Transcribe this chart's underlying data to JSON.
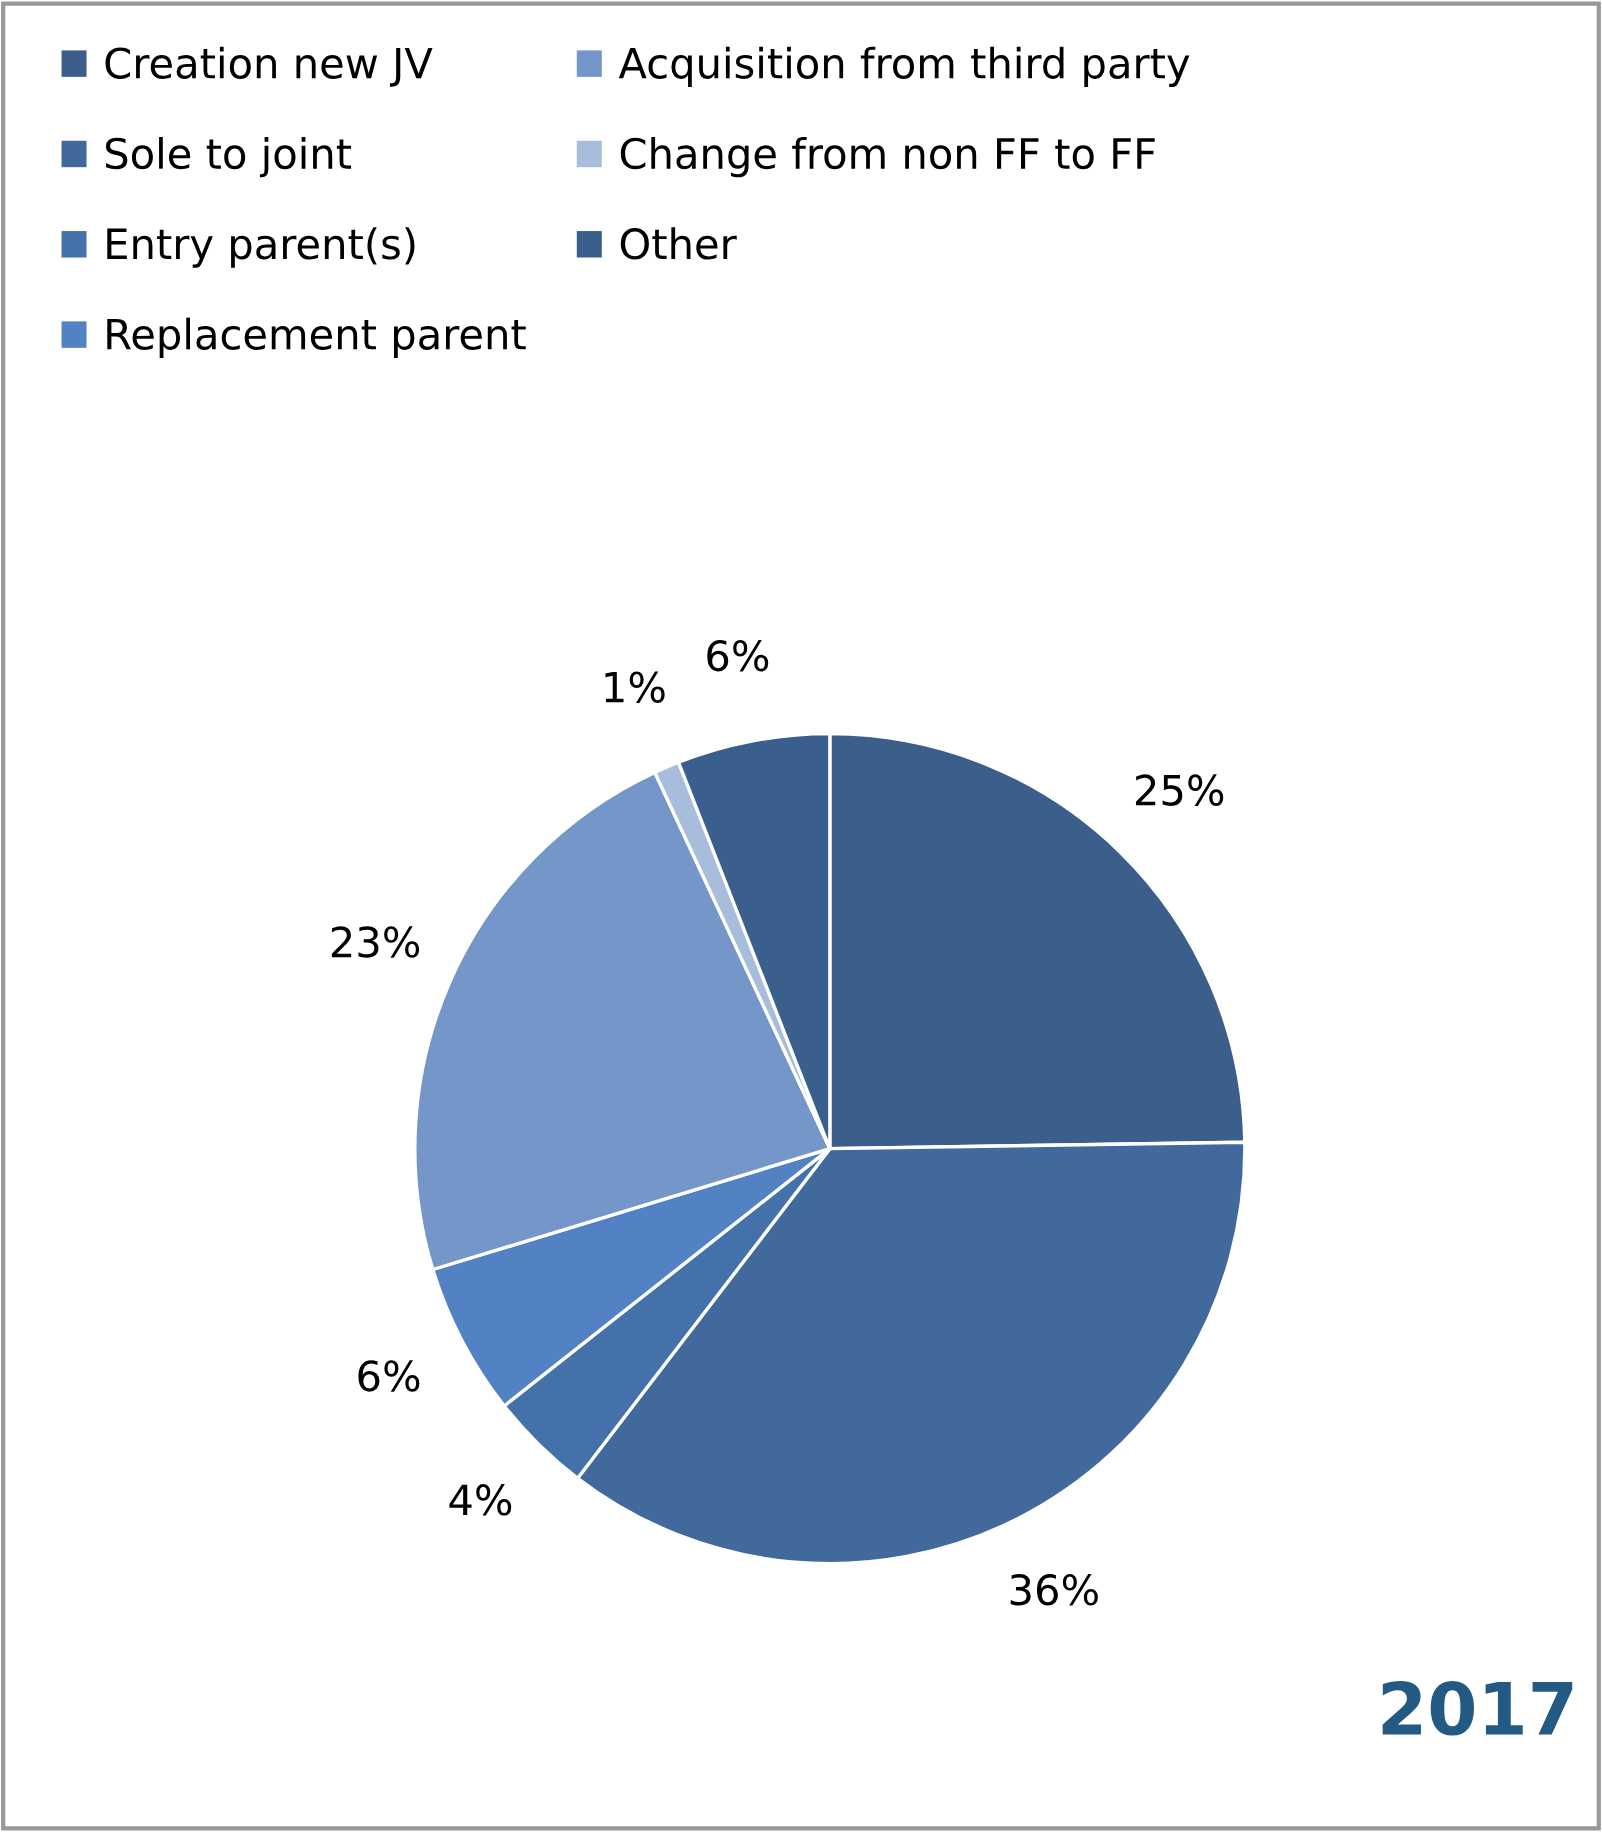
{
  "chart_data": {
    "type": "pie",
    "title": "2017",
    "categories": [
      "Creation new JV",
      "Sole to joint",
      "Entry parent(s)",
      "Replacement parent",
      "Acquisition from third party",
      "Change from non FF to FF",
      "Other"
    ],
    "values": [
      25,
      36,
      4,
      6,
      23,
      1,
      6
    ],
    "value_labels": [
      "25%",
      "36%",
      "4%",
      "6%",
      "23%",
      "1%",
      "6%"
    ],
    "colors": [
      "#3b5f8a",
      "#41699b",
      "#4571aa",
      "#5382c4",
      "#7496c8",
      "#a8bcdc",
      "#3a5f8c"
    ],
    "legend": "top"
  }
}
